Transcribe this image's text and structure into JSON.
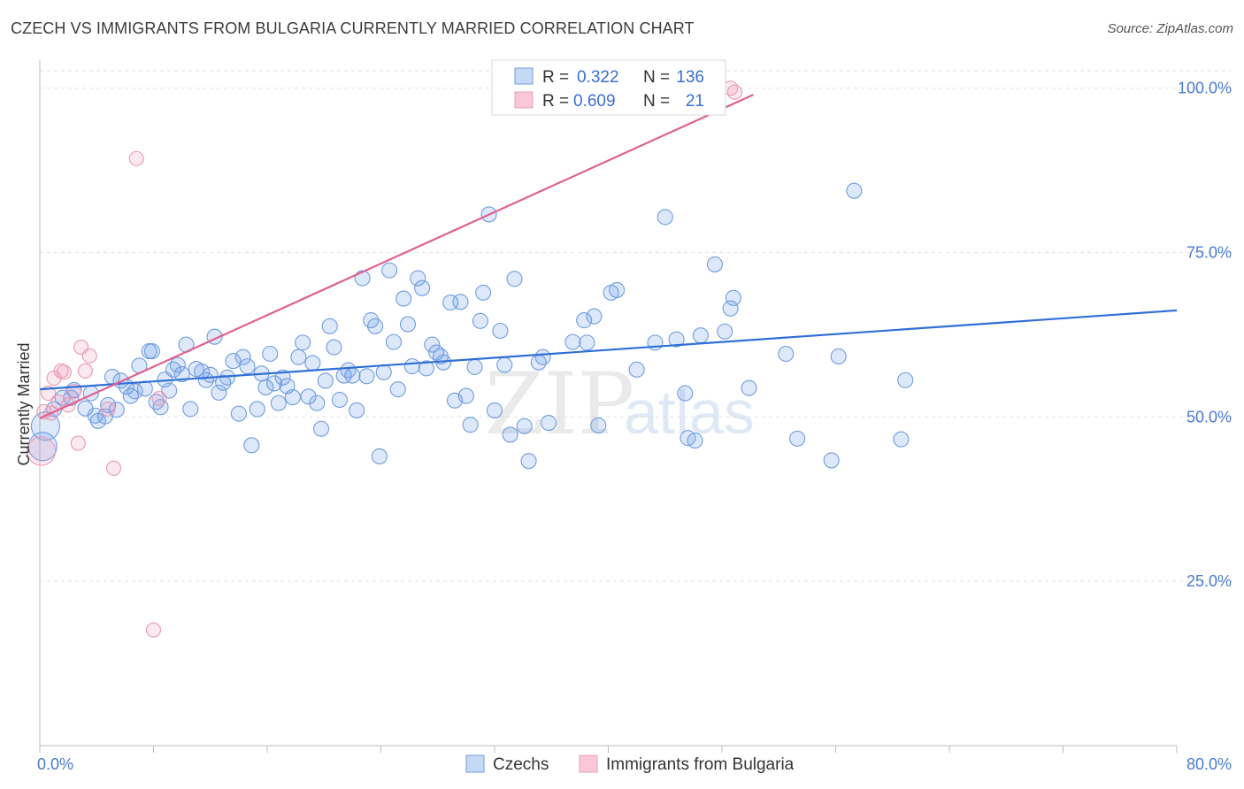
{
  "title": "CZECH VS IMMIGRANTS FROM BULGARIA CURRENTLY MARRIED CORRELATION CHART",
  "source": "Source: ZipAtlas.com",
  "watermark": {
    "zip": "ZIP",
    "atlas": "atlas"
  },
  "colors": {
    "blue": "#4a86e8",
    "pink": "#e87aa0",
    "blue_line": "#2f6fd6",
    "pink_line": "#e0608e",
    "tick": "#4a7bd0"
  },
  "chart_data": {
    "type": "scatter",
    "title": "CZECH VS IMMIGRANTS FROM BULGARIA CURRENTLY MARRIED CORRELATION CHART",
    "xlabel": "",
    "ylabel": "Currently Married",
    "xlim": [
      0,
      80
    ],
    "ylim": [
      0,
      104
    ],
    "x_tick_labels": [
      "0.0%",
      "80.0%"
    ],
    "y_ticks": [
      25,
      50,
      75,
      100
    ],
    "y_tick_labels": [
      "25.0%",
      "50.0%",
      "75.0%",
      "100.0%"
    ],
    "legend": [
      {
        "name": "Czechs",
        "r_label": "R = ",
        "r": "0.322",
        "n_label": "N = ",
        "n": "136"
      },
      {
        "name": "Immigrants from Bulgaria",
        "r_label": "R = ",
        "r": "0.609",
        "n_label": "N = ",
        "n": "21"
      }
    ],
    "series": [
      {
        "name": "Czechs",
        "trend": {
          "x": [
            0,
            80
          ],
          "y": [
            54.2,
            66.2
          ]
        },
        "points": [
          [
            0.2,
            45.5
          ],
          [
            0.4,
            48.6
          ],
          [
            1.0,
            51.2
          ],
          [
            1.6,
            52.9
          ],
          [
            2.2,
            52.9
          ],
          [
            2.4,
            54.1
          ],
          [
            3.2,
            51.3
          ],
          [
            3.6,
            53.6
          ],
          [
            3.9,
            50.2
          ],
          [
            4.1,
            49.4
          ],
          [
            4.6,
            50.1
          ],
          [
            4.8,
            51.8
          ],
          [
            5.1,
            56.1
          ],
          [
            5.4,
            51.1
          ],
          [
            5.7,
            55.5
          ],
          [
            6.1,
            54.6
          ],
          [
            6.4,
            53.2
          ],
          [
            6.7,
            53.9
          ],
          [
            7.0,
            57.8
          ],
          [
            7.4,
            54.3
          ],
          [
            7.7,
            60.0
          ],
          [
            7.9,
            60.0
          ],
          [
            8.2,
            52.3
          ],
          [
            8.5,
            51.5
          ],
          [
            8.8,
            55.7
          ],
          [
            9.1,
            54.0
          ],
          [
            9.4,
            57.2
          ],
          [
            9.7,
            57.9
          ],
          [
            10.0,
            56.5
          ],
          [
            10.3,
            61.0
          ],
          [
            10.6,
            51.2
          ],
          [
            11.0,
            57.3
          ],
          [
            11.4,
            56.9
          ],
          [
            11.7,
            55.6
          ],
          [
            12.0,
            56.4
          ],
          [
            12.3,
            62.2
          ],
          [
            12.6,
            53.7
          ],
          [
            12.9,
            55.2
          ],
          [
            13.2,
            56.0
          ],
          [
            13.6,
            58.5
          ],
          [
            14.0,
            50.5
          ],
          [
            14.3,
            59.1
          ],
          [
            14.6,
            57.7
          ],
          [
            14.9,
            45.7
          ],
          [
            15.3,
            51.2
          ],
          [
            15.6,
            56.6
          ],
          [
            15.9,
            54.5
          ],
          [
            16.2,
            59.6
          ],
          [
            16.5,
            55.1
          ],
          [
            16.8,
            52.1
          ],
          [
            17.1,
            56.0
          ],
          [
            17.4,
            54.7
          ],
          [
            17.8,
            53.0
          ],
          [
            18.2,
            59.1
          ],
          [
            18.5,
            61.3
          ],
          [
            18.9,
            53.1
          ],
          [
            19.2,
            58.2
          ],
          [
            19.5,
            52.1
          ],
          [
            19.8,
            48.2
          ],
          [
            20.1,
            55.5
          ],
          [
            20.4,
            63.8
          ],
          [
            20.7,
            60.6
          ],
          [
            21.1,
            52.6
          ],
          [
            21.4,
            56.3
          ],
          [
            21.7,
            57.1
          ],
          [
            22.0,
            56.3
          ],
          [
            22.3,
            51.0
          ],
          [
            22.7,
            71.1
          ],
          [
            23.0,
            56.2
          ],
          [
            23.3,
            64.7
          ],
          [
            23.6,
            63.8
          ],
          [
            23.9,
            44.0
          ],
          [
            24.2,
            56.8
          ],
          [
            24.6,
            72.3
          ],
          [
            24.9,
            61.4
          ],
          [
            25.2,
            54.2
          ],
          [
            25.6,
            68.0
          ],
          [
            25.9,
            64.1
          ],
          [
            26.2,
            57.7
          ],
          [
            26.6,
            71.1
          ],
          [
            26.9,
            69.6
          ],
          [
            27.2,
            57.4
          ],
          [
            27.6,
            61.0
          ],
          [
            27.9,
            59.8
          ],
          [
            28.2,
            59.2
          ],
          [
            28.4,
            58.3
          ],
          [
            28.9,
            67.4
          ],
          [
            29.2,
            52.5
          ],
          [
            29.6,
            67.5
          ],
          [
            30.0,
            53.2
          ],
          [
            30.3,
            48.8
          ],
          [
            30.6,
            57.6
          ],
          [
            31.0,
            64.6
          ],
          [
            31.2,
            68.9
          ],
          [
            31.6,
            80.8
          ],
          [
            32.0,
            51.0
          ],
          [
            32.4,
            63.1
          ],
          [
            32.7,
            57.9
          ],
          [
            33.1,
            47.3
          ],
          [
            33.4,
            71.0
          ],
          [
            34.1,
            48.6
          ],
          [
            34.4,
            43.3
          ],
          [
            35.1,
            58.3
          ],
          [
            35.4,
            59.1
          ],
          [
            35.8,
            49.1
          ],
          [
            37.5,
            61.4
          ],
          [
            38.3,
            64.7
          ],
          [
            38.5,
            61.3
          ],
          [
            39.0,
            65.3
          ],
          [
            39.3,
            48.7
          ],
          [
            40.2,
            68.9
          ],
          [
            40.6,
            69.3
          ],
          [
            42.0,
            57.2
          ],
          [
            43.3,
            61.3
          ],
          [
            44.0,
            80.4
          ],
          [
            44.8,
            61.8
          ],
          [
            45.4,
            53.6
          ],
          [
            45.6,
            46.8
          ],
          [
            46.1,
            46.4
          ],
          [
            46.5,
            62.4
          ],
          [
            47.5,
            73.2
          ],
          [
            48.2,
            63.0
          ],
          [
            48.6,
            66.5
          ],
          [
            48.8,
            68.1
          ],
          [
            49.9,
            54.4
          ],
          [
            52.5,
            59.6
          ],
          [
            53.3,
            46.7
          ],
          [
            55.7,
            43.4
          ],
          [
            56.2,
            59.2
          ],
          [
            57.3,
            84.4
          ],
          [
            60.6,
            46.6
          ],
          [
            60.9,
            55.6
          ]
        ]
      },
      {
        "name": "Immigrants from Bulgaria",
        "trend": {
          "x": [
            0,
            50.2
          ],
          "y": [
            49.8,
            99.0
          ]
        },
        "points": [
          [
            0.1,
            44.8
          ],
          [
            0.3,
            50.8
          ],
          [
            0.6,
            53.6
          ],
          [
            0.8,
            50.6
          ],
          [
            1.0,
            55.9
          ],
          [
            1.3,
            52.3
          ],
          [
            1.5,
            57.0
          ],
          [
            1.7,
            56.8
          ],
          [
            2.0,
            51.8
          ],
          [
            2.4,
            53.9
          ],
          [
            2.7,
            46.0
          ],
          [
            2.9,
            60.6
          ],
          [
            3.2,
            57.0
          ],
          [
            3.5,
            59.3
          ],
          [
            4.8,
            51.2
          ],
          [
            5.2,
            42.2
          ],
          [
            6.8,
            89.3
          ],
          [
            8.0,
            17.6
          ],
          [
            8.4,
            52.8
          ],
          [
            48.6,
            100.0
          ],
          [
            48.9,
            99.4
          ]
        ]
      }
    ]
  }
}
